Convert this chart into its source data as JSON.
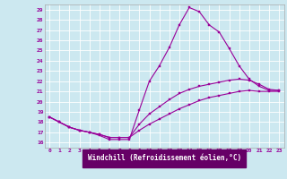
{
  "xlabel": "Windchill (Refroidissement éolien,°C)",
  "background_color": "#cce8f0",
  "plot_bg_color": "#cce8f0",
  "line_color": "#990099",
  "xlabel_bar_color": "#660066",
  "xlim": [
    -0.5,
    23.5
  ],
  "ylim": [
    15.5,
    29.5
  ],
  "xticks": [
    0,
    1,
    2,
    3,
    4,
    5,
    6,
    7,
    8,
    9,
    10,
    11,
    12,
    13,
    14,
    15,
    16,
    17,
    18,
    19,
    20,
    21,
    22,
    23
  ],
  "yticks": [
    16,
    17,
    18,
    19,
    20,
    21,
    22,
    23,
    24,
    25,
    26,
    27,
    28,
    29
  ],
  "series1": [
    18.5,
    18.0,
    17.5,
    17.2,
    17.0,
    16.7,
    16.3,
    16.3,
    16.3,
    19.2,
    22.0,
    23.5,
    25.3,
    27.5,
    29.2,
    28.8,
    27.5,
    26.8,
    25.2,
    23.5,
    22.2,
    21.5,
    21.1,
    21.1
  ],
  "series2": [
    18.5,
    18.0,
    17.5,
    17.2,
    17.0,
    16.8,
    16.5,
    16.5,
    16.5,
    17.8,
    18.8,
    19.5,
    20.2,
    20.8,
    21.2,
    21.5,
    21.7,
    21.9,
    22.1,
    22.2,
    22.1,
    21.7,
    21.2,
    21.1
  ],
  "series3": [
    18.5,
    18.0,
    17.5,
    17.2,
    17.0,
    16.8,
    16.5,
    16.5,
    16.5,
    17.2,
    17.8,
    18.3,
    18.8,
    19.3,
    19.7,
    20.1,
    20.4,
    20.6,
    20.8,
    21.0,
    21.1,
    21.0,
    21.0,
    21.0
  ]
}
